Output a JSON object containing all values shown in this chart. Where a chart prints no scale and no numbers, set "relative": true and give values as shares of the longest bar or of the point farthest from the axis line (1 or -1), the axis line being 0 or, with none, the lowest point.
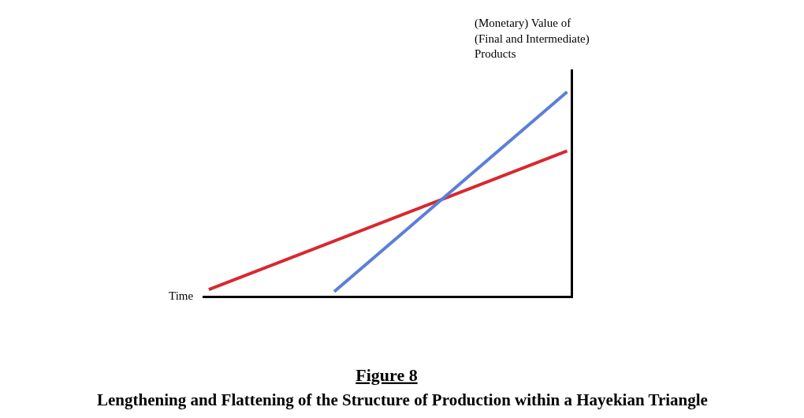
{
  "chart_data": {
    "type": "line",
    "title": "Figure 8",
    "subtitle": "Lengthening and Flattening of the Structure of Production within a Hayekian Triangle",
    "xlabel": "Time",
    "ylabel": "(Monetary) Value of (Final and Intermediate) Products",
    "relative": true,
    "grid": false,
    "marker": "none",
    "line_style": "solid",
    "categories": [
      null,
      null,
      null,
      null,
      null,
      null,
      null,
      null,
      null,
      null,
      null,
      null,
      null,
      null,
      null,
      null,
      null,
      null,
      null,
      null,
      null
    ],
    "series": [
      {
        "color": "#d8282e",
        "values": [
          0.03,
          null,
          null,
          null,
          null,
          null,
          null,
          null,
          null,
          null,
          null,
          null,
          null,
          null,
          null,
          null,
          null,
          null,
          null,
          null,
          0.71
        ]
      },
      {
        "color": "#5b7fd8",
        "values": [
          null,
          null,
          null,
          null,
          null,
          null,
          null,
          0.02,
          null,
          null,
          null,
          null,
          null,
          null,
          null,
          null,
          null,
          null,
          null,
          null,
          1
        ]
      }
    ]
  }
}
